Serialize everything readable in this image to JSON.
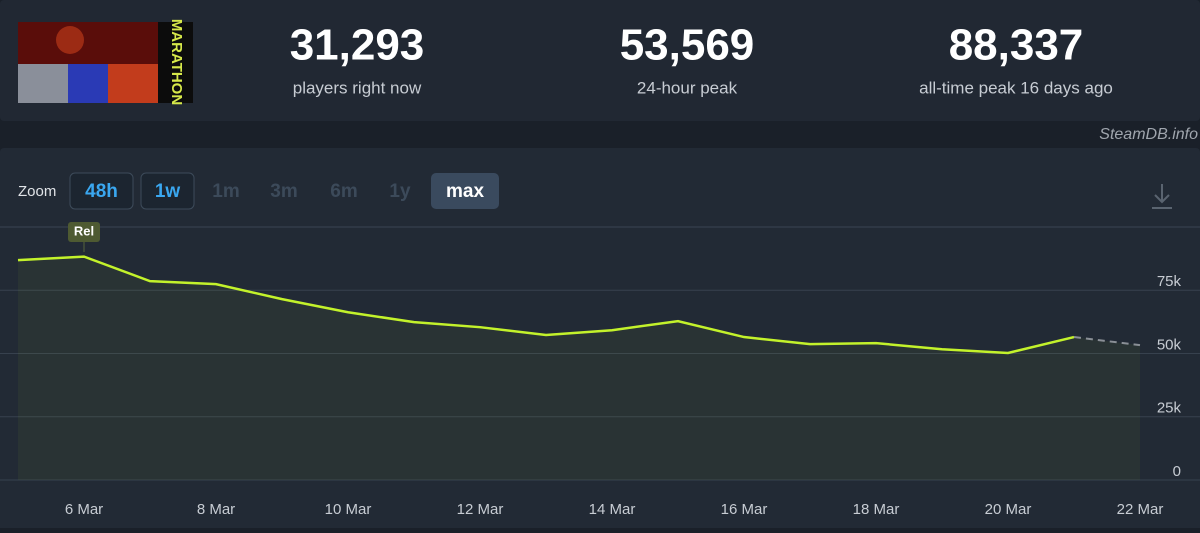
{
  "header": {
    "game_logo": "MARATHON",
    "stats": [
      {
        "value": "31,293",
        "label": "players right now"
      },
      {
        "value": "53,569",
        "label": "24-hour peak"
      },
      {
        "value": "88,337",
        "label": "all-time peak 16 days ago"
      }
    ],
    "credit": "SteamDB.info"
  },
  "zoom": {
    "label": "Zoom",
    "options": [
      "48h",
      "1w",
      "1m",
      "3m",
      "6m",
      "1y",
      "max"
    ]
  },
  "chart_data": {
    "type": "line",
    "categories": [
      null,
      "6 Mar",
      null,
      "8 Mar",
      null,
      "10 Mar",
      null,
      "12 Mar",
      null,
      "14 Mar",
      null,
      "16 Mar",
      null,
      "18 Mar",
      null,
      "20 Mar",
      null,
      "22 Mar"
    ],
    "series": [
      {
        "color": "#c3f22b",
        "values": [
          86900,
          88300,
          78600,
          77400,
          71500,
          66300,
          62400,
          60400,
          57300,
          59200,
          62800,
          56500,
          53700,
          54100,
          51700,
          50200,
          56500,
          null
        ]
      },
      {
        "color": "#8a8f96",
        "dashed": true,
        "values": [
          null,
          null,
          null,
          null,
          null,
          null,
          null,
          null,
          null,
          null,
          null,
          null,
          null,
          null,
          null,
          null,
          56500,
          53300
        ]
      }
    ],
    "ylim": [
      0,
      100000
    ],
    "yticks": [
      0,
      {
        "value": 25000,
        "label": "25k"
      },
      {
        "value": 50000,
        "label": "50k"
      },
      {
        "value": 75000,
        "label": "75k"
      }
    ],
    "grid": true,
    "annotation": {
      "text": "Rel",
      "category": 1
    }
  }
}
